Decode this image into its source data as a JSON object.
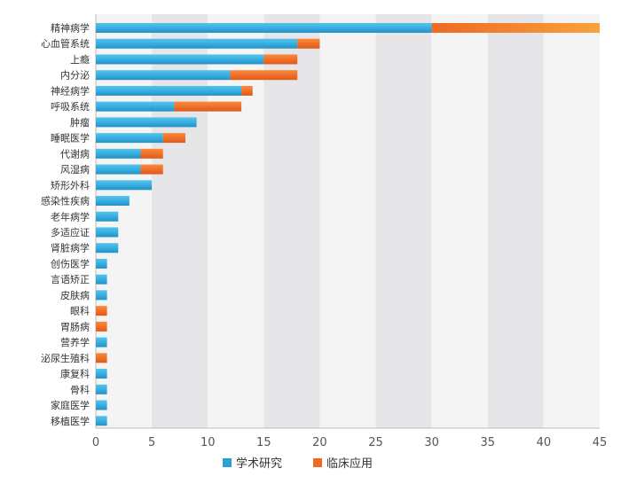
{
  "chart_data": {
    "type": "bar",
    "orientation": "horizontal",
    "stacked": true,
    "title": "",
    "xlabel": "",
    "ylabel": "",
    "xlim": [
      0,
      45
    ],
    "x_ticks": [
      0,
      5,
      10,
      15,
      20,
      25,
      30,
      35,
      40,
      45
    ],
    "grid": "alternating vertical bands",
    "legend_position": "bottom-center",
    "categories": [
      "精神病学",
      "心血管系统",
      "上瘾",
      "内分泌",
      "神经病学",
      "呼吸系统",
      "肿瘤",
      "睡眠医学",
      "代谢病",
      "风湿病",
      "矫形外科",
      "感染性疾病",
      "老年病学",
      "多适应证",
      "肾脏病学",
      "创伤医学",
      "言语矫正",
      "皮肤病",
      "眼科",
      "胃肠病",
      "营养学",
      "泌尿生殖科",
      "康复科",
      "骨科",
      "家庭医学",
      "移植医学"
    ],
    "series": [
      {
        "name": "学术研究",
        "color": "#2f9fd4",
        "values": [
          30,
          18,
          15,
          12,
          13,
          7,
          9,
          6,
          4,
          4,
          5,
          3,
          2,
          2,
          2,
          1,
          1,
          1,
          0,
          0,
          1,
          0,
          1,
          1,
          1,
          1
        ]
      },
      {
        "name": "临床应用",
        "color": "#ee6a24",
        "values": [
          15,
          2,
          3,
          6,
          1,
          6,
          0,
          2,
          2,
          2,
          0,
          0,
          0,
          0,
          0,
          0,
          0,
          0,
          1,
          1,
          0,
          1,
          0,
          0,
          0,
          0
        ]
      }
    ]
  }
}
